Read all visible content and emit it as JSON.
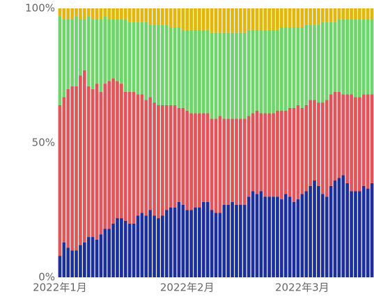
{
  "chart_data": {
    "type": "stacked_bar_percent",
    "categories": [
      "2022年1月",
      null,
      null,
      null,
      null,
      null,
      null,
      null,
      null,
      null,
      null,
      null,
      null,
      null,
      null,
      null,
      null,
      null,
      null,
      null,
      null,
      null,
      null,
      null,
      null,
      null,
      null,
      null,
      null,
      null,
      null,
      "2022年2月",
      null,
      null,
      null,
      null,
      null,
      null,
      null,
      null,
      null,
      null,
      null,
      null,
      null,
      null,
      null,
      null,
      null,
      null,
      null,
      null,
      null,
      null,
      null,
      null,
      null,
      null,
      null,
      "2022年3月",
      null,
      null,
      null,
      null,
      null,
      null,
      null,
      null,
      null,
      null,
      null,
      null,
      null,
      null,
      null,
      null,
      null
    ],
    "series": [
      {
        "color": "#1c2f9c",
        "values": [
          8,
          13,
          11,
          10,
          10,
          12,
          13,
          15,
          15,
          14,
          16,
          18,
          18,
          20,
          22,
          22,
          21,
          20,
          20,
          23,
          24,
          23,
          25,
          23,
          22,
          23,
          25,
          26,
          26,
          28,
          27,
          25,
          25,
          26,
          26,
          28,
          28,
          25,
          24,
          24,
          27,
          27,
          28,
          27,
          27,
          27,
          30,
          32,
          31,
          32,
          30,
          30,
          30,
          30,
          29,
          31,
          30,
          28,
          29,
          31,
          32,
          34,
          36,
          34,
          31,
          30,
          34,
          36,
          37,
          38,
          35,
          32,
          32,
          32,
          34,
          33,
          35
        ]
      },
      {
        "color": "#e0545a",
        "values": [
          56,
          54,
          59,
          61,
          61,
          63,
          64,
          56,
          55,
          58,
          53,
          54,
          55,
          54,
          51,
          50,
          48,
          49,
          49,
          45,
          44,
          43,
          42,
          42,
          42,
          41,
          39,
          38,
          38,
          35,
          36,
          37,
          36,
          35,
          35,
          33,
          33,
          34,
          35,
          36,
          32,
          32,
          31,
          32,
          32,
          32,
          30,
          29,
          31,
          29,
          31,
          31,
          31,
          32,
          33,
          31,
          33,
          35,
          35,
          32,
          32,
          32,
          30,
          31,
          34,
          36,
          34,
          33,
          32,
          30,
          33,
          36,
          35,
          35,
          34,
          35,
          33
        ]
      },
      {
        "color": "#6dd56a",
        "values": [
          33,
          29,
          26,
          25,
          26,
          21,
          19,
          26,
          26,
          24,
          27,
          25,
          23,
          22,
          23,
          24,
          27,
          26,
          26,
          27,
          27,
          29,
          27,
          29,
          30,
          30,
          30,
          29,
          29,
          30,
          29,
          30,
          31,
          31,
          31,
          31,
          31,
          32,
          32,
          31,
          32,
          32,
          32,
          32,
          32,
          32,
          32,
          31,
          30,
          31,
          31,
          31,
          31,
          30,
          31,
          31,
          30,
          30,
          29,
          30,
          30,
          28,
          28,
          29,
          30,
          29,
          27,
          26,
          27,
          28,
          28,
          28,
          29,
          29,
          28,
          28,
          28
        ]
      },
      {
        "color": "#e3b60d",
        "values": [
          3,
          4,
          4,
          4,
          3,
          4,
          4,
          3,
          4,
          4,
          4,
          3,
          4,
          4,
          4,
          4,
          4,
          5,
          5,
          5,
          5,
          5,
          6,
          6,
          6,
          6,
          6,
          7,
          7,
          7,
          8,
          8,
          8,
          8,
          8,
          8,
          8,
          9,
          9,
          9,
          9,
          9,
          9,
          9,
          9,
          9,
          8,
          8,
          8,
          8,
          8,
          8,
          8,
          8,
          7,
          7,
          7,
          7,
          7,
          7,
          6,
          6,
          6,
          6,
          5,
          5,
          5,
          5,
          4,
          4,
          4,
          4,
          4,
          4,
          4,
          4,
          4
        ]
      }
    ],
    "ylim": [
      0,
      100
    ],
    "yticks": [
      {
        "value": 0,
        "label": "0%"
      },
      {
        "value": 50,
        "label": "50%"
      },
      {
        "value": 100,
        "label": "100%"
      }
    ]
  }
}
